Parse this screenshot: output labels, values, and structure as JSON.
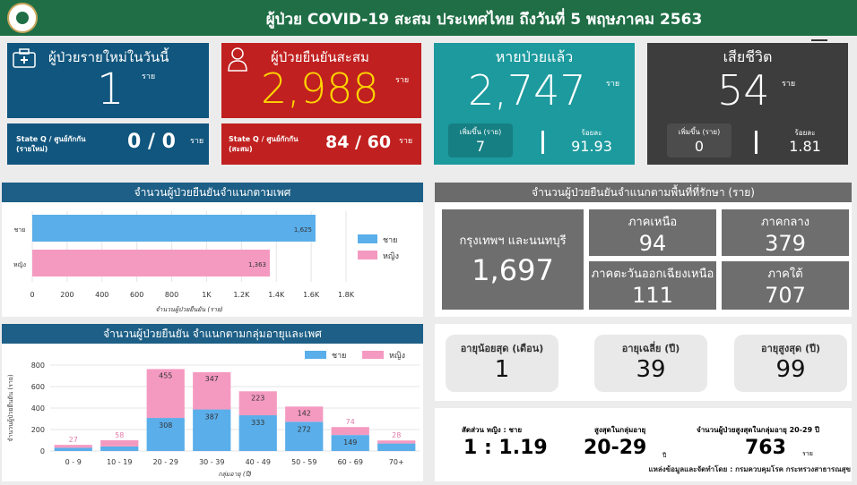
{
  "header": {
    "title": "ผู้ป่วย COVID-19 สะสม  ประเทศไทย ถึงวันที่ 5 พฤษภาคม 2563"
  },
  "unit": "ราย",
  "new_today": {
    "label": "ผู้ป่วยรายใหม่ในวันนี้",
    "value": "1",
    "stateq_label": "State Q / ศูนย์กักกัน (รายใหม่)",
    "stateq_value": "0 / 0"
  },
  "cumulative": {
    "label": "ผู้ป่วยยืนยันสะสม",
    "value": "2,988",
    "stateq_label": "State Q / ศูนย์กักกัน (สะสม)",
    "stateq_value": "84 / 60"
  },
  "recovered": {
    "label": "หายป่วยแล้ว",
    "value": "2,747",
    "increase_label": "เพิ่มขึ้น (ราย)",
    "increase_value": "7",
    "pct_label": "ร้อยละ",
    "pct_value": "91.93"
  },
  "deaths": {
    "label": "เสียชีวิต",
    "value": "54",
    "increase_label": "เพิ่มขึ้น (ราย)",
    "increase_value": "0",
    "pct_label": "ร้อยละ",
    "pct_value": "1.81"
  },
  "gender_section": {
    "title": "จำนวนผู้ป่วยยืนยันจำแนกตามเพศ"
  },
  "region_section": {
    "title": "จำนวนผู้ป่วยยืนยันจำแนกตามพื้นที่ที่รักษา (ราย)",
    "regions": [
      {
        "label": "กรุงเทพฯ และนนทบุรี",
        "value": "1,697"
      },
      {
        "label": "ภาคเหนือ",
        "value": "94"
      },
      {
        "label": "ภาคกลาง",
        "value": "379"
      },
      {
        "label": "ภาคตะวันออกเฉียงเหนือ",
        "value": "111"
      },
      {
        "label": "ภาคใต้",
        "value": "707"
      }
    ]
  },
  "age_section": {
    "title": "จำนวนผู้ป่วยยืนยัน จำแนกตามกลุ่มอายุและเพศ"
  },
  "age_stats": [
    {
      "label": "อายุน้อยสุด (เดือน)",
      "value": "1"
    },
    {
      "label": "อายุเฉลี่ย (ปี)",
      "value": "39"
    },
    {
      "label": "อายุสูงสุด (ปี)",
      "value": "99"
    }
  ],
  "ratio": {
    "label": "สัดส่วน  หญิง : ชาย",
    "value": "1 : 1.19",
    "peak_label": "สูงสุดในกลุ่มอายุ",
    "peak_value": "20-29",
    "peak_unit": "ปี",
    "peak_count_label": "จำนวนผู้ป่วยสูงสุดในกลุ่มอายุ 20-29 ปี",
    "peak_count": "763"
  },
  "source": "แหล่งข้อมูลและจัดทำโดย : กรมควบคุมโรค กระทรวงสาธารณสุข",
  "colors": {
    "male": "#5aaeea",
    "female": "#f49ac1",
    "blue_card": "#11567e",
    "red_card": "#c0201f",
    "teal_card": "#1c9a9e",
    "dark_card": "#3d3d3d"
  },
  "chart_data": [
    {
      "type": "bar",
      "orientation": "horizontal",
      "categories": [
        "ชาย",
        "หญิง"
      ],
      "values": [
        1625,
        1363
      ],
      "value_labels": [
        "1,625",
        "1,363"
      ],
      "legend": [
        "ชาย",
        "หญิง"
      ],
      "xlabel": "จำนวนผู้ป่วยยืนยัน (ราย)",
      "xticks": [
        "0",
        "200",
        "400",
        "600",
        "800",
        "1K",
        "1.2K",
        "1.4K",
        "1.6K",
        "1.8K"
      ],
      "xlim": [
        0,
        1800
      ],
      "legend_position": "right"
    },
    {
      "type": "bar",
      "stacked": true,
      "categories": [
        "0 - 9",
        "10 - 19",
        "20 - 29",
        "30 - 39",
        "40 - 49",
        "50 - 59",
        "60 - 69",
        "70+"
      ],
      "series": [
        {
          "name": "ชาย",
          "values": [
            30,
            42,
            308,
            387,
            333,
            272,
            149,
            70
          ]
        },
        {
          "name": "หญิง",
          "values": [
            27,
            58,
            455,
            347,
            223,
            142,
            74,
            28
          ]
        }
      ],
      "labels_male": [
        "",
        "",
        "308",
        "387",
        "333",
        "272",
        "149",
        ""
      ],
      "labels_female": [
        "27",
        "58",
        "455",
        "347",
        "223",
        "142",
        "74",
        "28"
      ],
      "ylabel": "จำนวนผู้ป่วยยืนยัน (ราย)",
      "xlabel": "กลุ่มอายุ (ปี)",
      "yticks": [
        "0",
        "200",
        "400",
        "600",
        "800"
      ],
      "ylim": [
        0,
        800
      ],
      "legend_position": "top-right"
    }
  ]
}
